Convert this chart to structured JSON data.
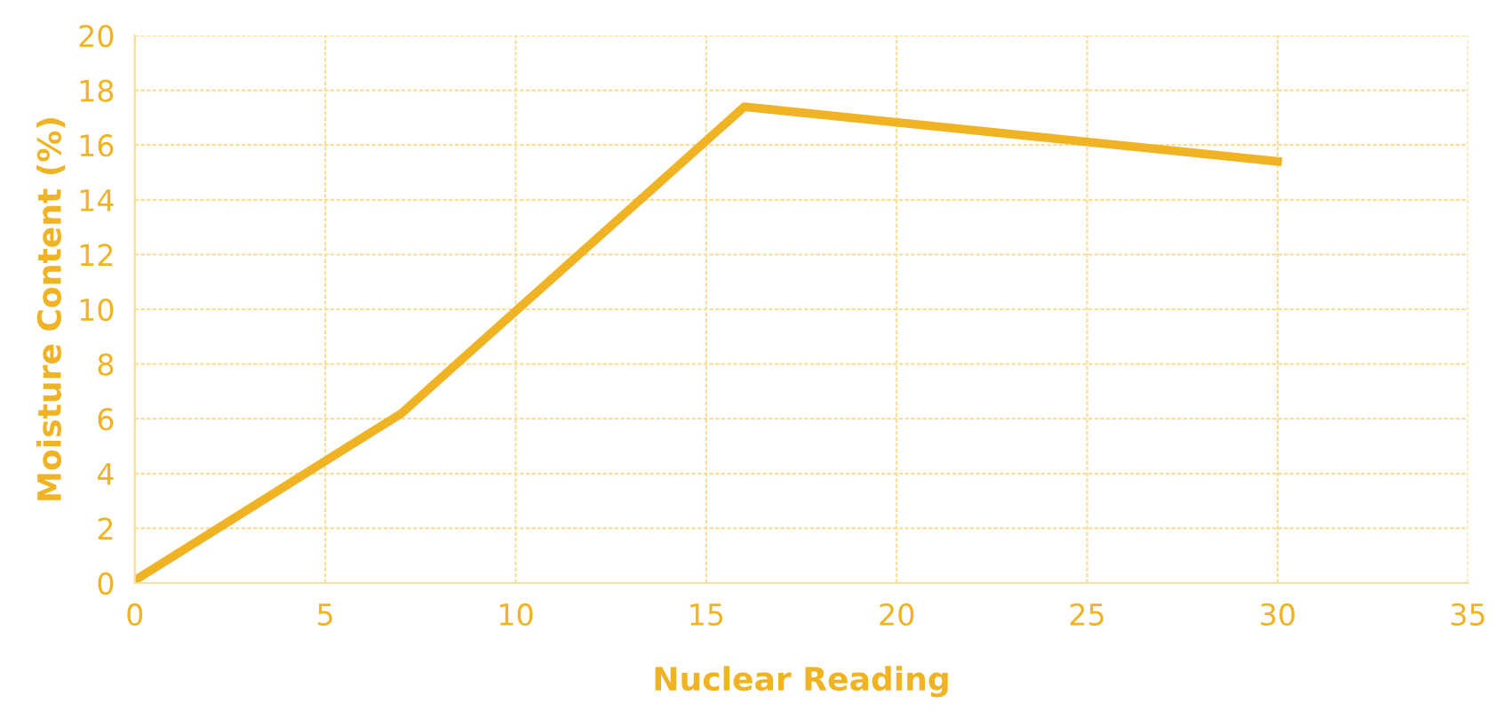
{
  "chart_data": {
    "type": "line",
    "xlabel": "Nuclear Reading",
    "ylabel": "Moisture Content (%)",
    "x": [
      0,
      7,
      16,
      30
    ],
    "series": [
      {
        "color": "#f0b323",
        "values": [
          0.1,
          6.2,
          17.4,
          15.4
        ]
      }
    ],
    "xlim": [
      0,
      35
    ],
    "xticks": [
      0,
      5,
      10,
      15,
      20,
      25,
      30,
      35
    ],
    "ylim": [
      0,
      20
    ],
    "yticks": [
      0,
      2,
      4,
      6,
      8,
      10,
      12,
      14,
      16,
      18,
      20
    ],
    "grid": true,
    "marker": "none",
    "line_style": "solid"
  }
}
